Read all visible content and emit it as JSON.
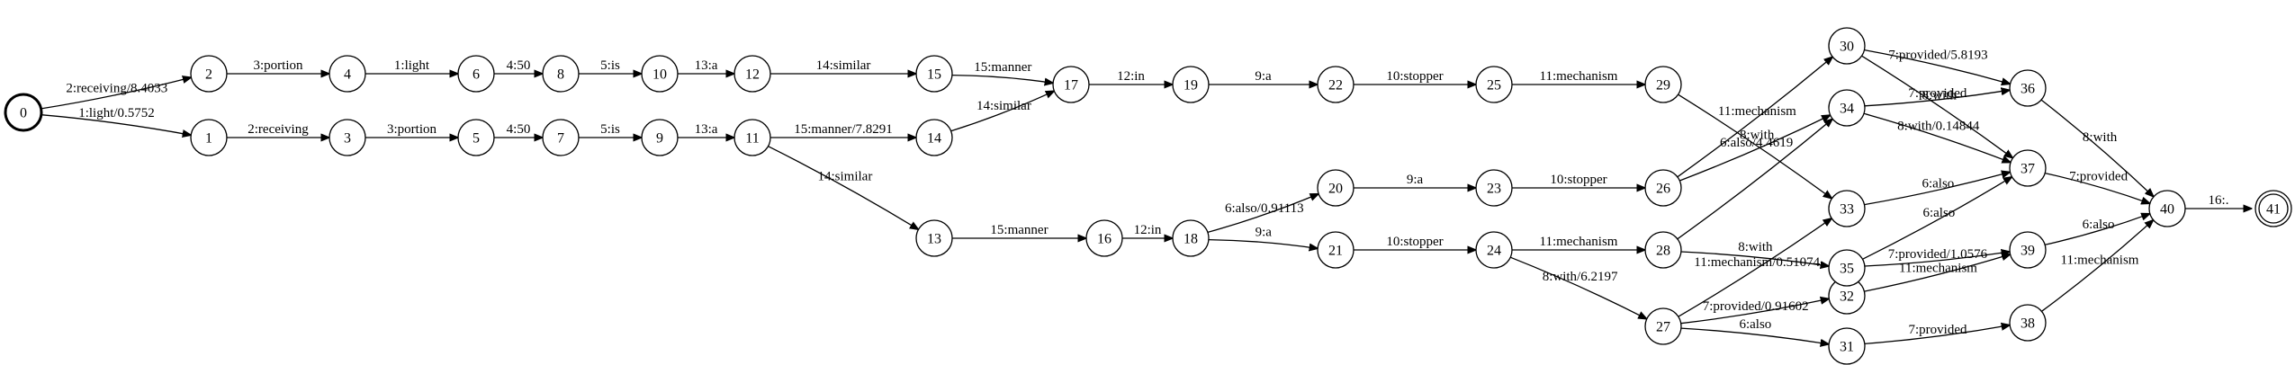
{
  "graph": {
    "start_node": "0",
    "final_node": "41",
    "nodes": [
      "0",
      "1",
      "2",
      "3",
      "4",
      "5",
      "6",
      "7",
      "8",
      "9",
      "10",
      "11",
      "12",
      "13",
      "14",
      "15",
      "16",
      "17",
      "18",
      "19",
      "20",
      "21",
      "22",
      "23",
      "24",
      "25",
      "26",
      "27",
      "28",
      "29",
      "30",
      "31",
      "32",
      "33",
      "34",
      "35",
      "36",
      "37",
      "38",
      "39",
      "40",
      "41"
    ],
    "edges": [
      {
        "from": "0",
        "to": "2",
        "label": "2:receiving/8.4033"
      },
      {
        "from": "0",
        "to": "1",
        "label": "1:light/0.5752"
      },
      {
        "from": "2",
        "to": "4",
        "label": "3:portion"
      },
      {
        "from": "1",
        "to": "3",
        "label": "2:receiving"
      },
      {
        "from": "4",
        "to": "6",
        "label": "1:light"
      },
      {
        "from": "3",
        "to": "5",
        "label": "3:portion"
      },
      {
        "from": "6",
        "to": "8",
        "label": "4:50"
      },
      {
        "from": "5",
        "to": "7",
        "label": "4:50"
      },
      {
        "from": "8",
        "to": "10",
        "label": "5:is"
      },
      {
        "from": "7",
        "to": "9",
        "label": "5:is"
      },
      {
        "from": "10",
        "to": "12",
        "label": "13:a"
      },
      {
        "from": "9",
        "to": "11",
        "label": "13:a"
      },
      {
        "from": "12",
        "to": "15",
        "label": "14:similar"
      },
      {
        "from": "11",
        "to": "14",
        "label": "15:manner/7.8291"
      },
      {
        "from": "11",
        "to": "13",
        "label": "14:similar"
      },
      {
        "from": "15",
        "to": "17",
        "label": "15:manner"
      },
      {
        "from": "14",
        "to": "17",
        "label": "14:similar"
      },
      {
        "from": "13",
        "to": "16",
        "label": "15:manner"
      },
      {
        "from": "17",
        "to": "19",
        "label": "12:in"
      },
      {
        "from": "16",
        "to": "18",
        "label": "12:in"
      },
      {
        "from": "19",
        "to": "22",
        "label": "9:a"
      },
      {
        "from": "18",
        "to": "20",
        "label": "6:also/0.91113"
      },
      {
        "from": "18",
        "to": "21",
        "label": "9:a"
      },
      {
        "from": "22",
        "to": "25",
        "label": "10:stopper"
      },
      {
        "from": "20",
        "to": "23",
        "label": "9:a"
      },
      {
        "from": "21",
        "to": "24",
        "label": "10:stopper"
      },
      {
        "from": "25",
        "to": "29",
        "label": "11:mechanism"
      },
      {
        "from": "23",
        "to": "26",
        "label": "10:stopper"
      },
      {
        "from": "24",
        "to": "28",
        "label": "11:mechanism"
      },
      {
        "from": "24",
        "to": "27",
        "label": "8:with/6.2197"
      },
      {
        "from": "29",
        "to": "33",
        "label": "8:with"
      },
      {
        "from": "26",
        "to": "30",
        "label": "11:mechanism"
      },
      {
        "from": "26",
        "to": "34",
        "label": "6:also/4.4619"
      },
      {
        "from": "28",
        "to": "34",
        "label": ""
      },
      {
        "from": "28",
        "to": "35",
        "label": "8:with"
      },
      {
        "from": "27",
        "to": "33",
        "label": "11:mechanism/0.51074"
      },
      {
        "from": "27",
        "to": "32",
        "label": "7:provided/0.91602"
      },
      {
        "from": "27",
        "to": "31",
        "label": "6:also"
      },
      {
        "from": "30",
        "to": "36",
        "label": "7:provided/5.8193"
      },
      {
        "from": "30",
        "to": "37",
        "label": "8:with"
      },
      {
        "from": "34",
        "to": "36",
        "label": "7:provided"
      },
      {
        "from": "34",
        "to": "37",
        "label": "8:with/0.14844"
      },
      {
        "from": "33",
        "to": "37",
        "label": "6:also"
      },
      {
        "from": "35",
        "to": "37",
        "label": "6:also"
      },
      {
        "from": "35",
        "to": "39",
        "label": "7:provided/1.0576"
      },
      {
        "from": "32",
        "to": "39",
        "label": "11:mechanism"
      },
      {
        "from": "31",
        "to": "38",
        "label": "7:provided"
      },
      {
        "from": "36",
        "to": "40",
        "label": "8:with"
      },
      {
        "from": "37",
        "to": "40",
        "label": "7:provided"
      },
      {
        "from": "39",
        "to": "40",
        "label": "6:also"
      },
      {
        "from": "38",
        "to": "40",
        "label": "11:mechanism"
      },
      {
        "from": "40",
        "to": "41",
        "label": "16:."
      }
    ]
  }
}
